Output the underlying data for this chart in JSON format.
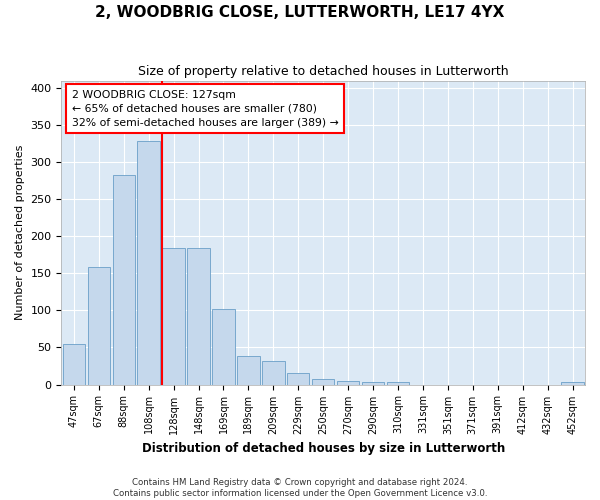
{
  "title": "2, WOODBRIG CLOSE, LUTTERWORTH, LE17 4YX",
  "subtitle": "Size of property relative to detached houses in Lutterworth",
  "xlabel": "Distribution of detached houses by size in Lutterworth",
  "ylabel": "Number of detached properties",
  "categories": [
    "47sqm",
    "67sqm",
    "88sqm",
    "108sqm",
    "128sqm",
    "148sqm",
    "169sqm",
    "189sqm",
    "209sqm",
    "229sqm",
    "250sqm",
    "270sqm",
    "290sqm",
    "310sqm",
    "331sqm",
    "351sqm",
    "371sqm",
    "391sqm",
    "412sqm",
    "432sqm",
    "452sqm"
  ],
  "values": [
    55,
    158,
    283,
    328,
    184,
    184,
    102,
    38,
    32,
    16,
    7,
    5,
    3,
    4,
    0,
    0,
    0,
    0,
    0,
    0,
    4
  ],
  "bar_color": "#c5d8ec",
  "bar_edge_color": "#6a9fc8",
  "red_line_index": 4,
  "annotation_text": "2 WOODBRIG CLOSE: 127sqm\n← 65% of detached houses are smaller (780)\n32% of semi-detached houses are larger (389) →",
  "footer1": "Contains HM Land Registry data © Crown copyright and database right 2024.",
  "footer2": "Contains public sector information licensed under the Open Government Licence v3.0.",
  "ylim": [
    0,
    410
  ],
  "yticks": [
    0,
    50,
    100,
    150,
    200,
    250,
    300,
    350,
    400
  ],
  "background_color": "#dce9f5",
  "title_fontsize": 11,
  "subtitle_fontsize": 9
}
